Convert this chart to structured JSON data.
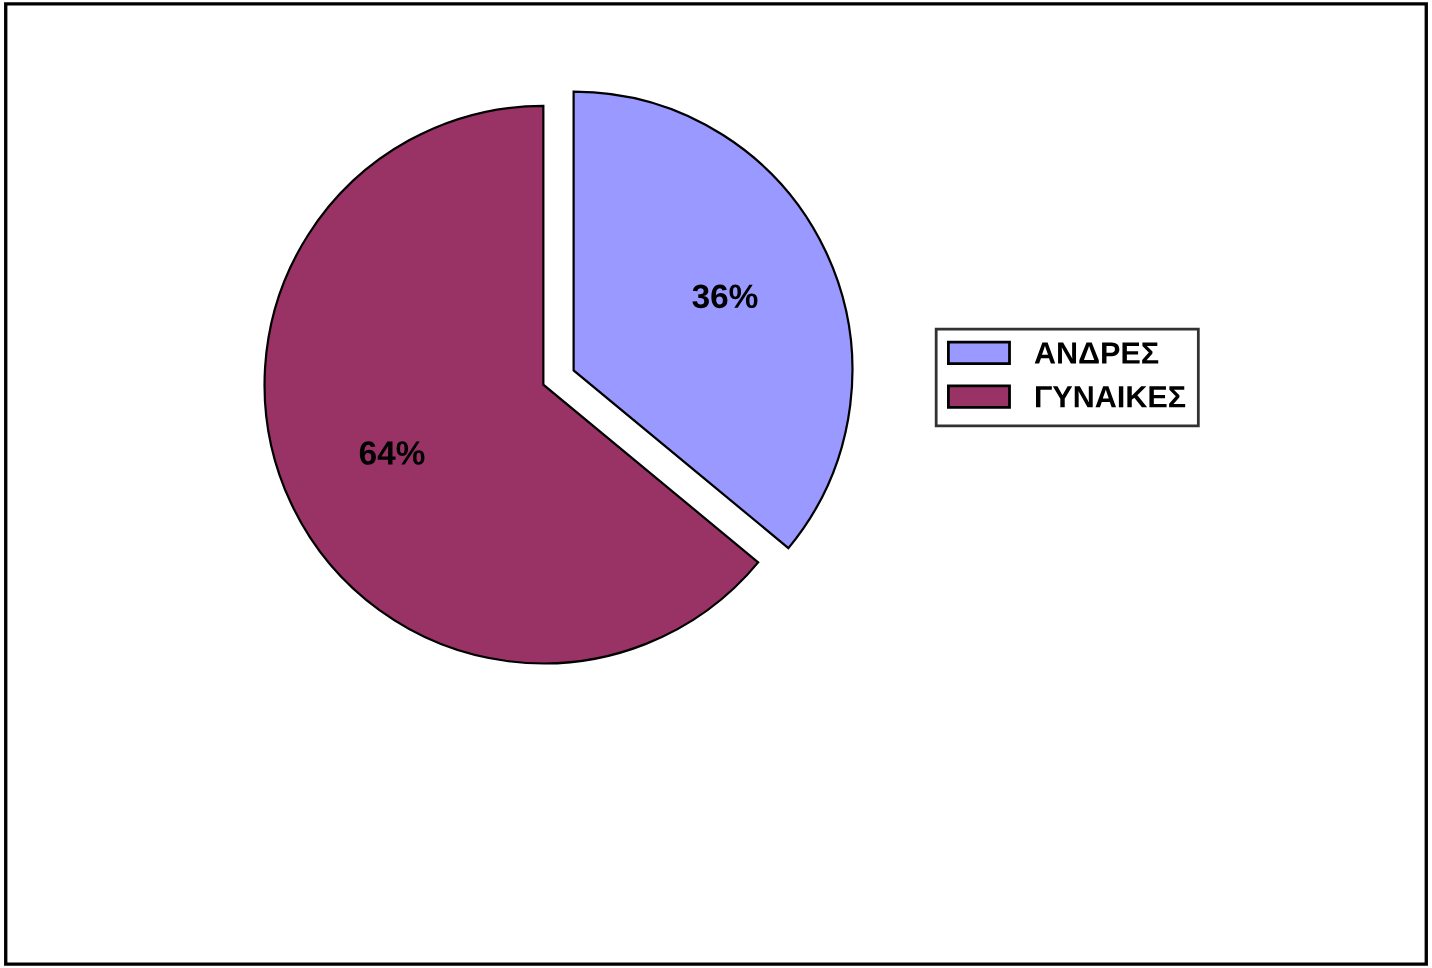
{
  "chart_data": {
    "type": "pie",
    "categories": [
      "ΑΝΔΡΕΣ",
      "ΓΥΝΑΙΚΕΣ"
    ],
    "values": [
      36,
      64
    ],
    "colors": [
      "#9999ff",
      "#993366"
    ],
    "value_labels": [
      "36%",
      "64%"
    ],
    "legend": "right"
  }
}
